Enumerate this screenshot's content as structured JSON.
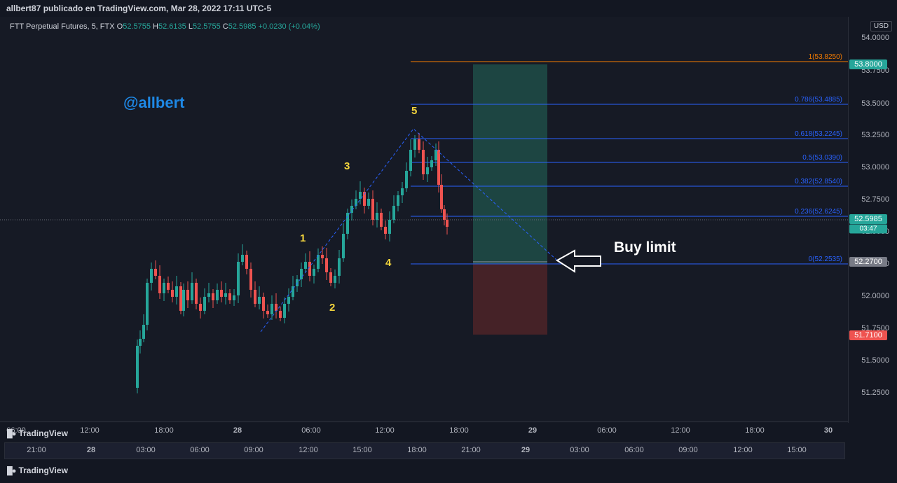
{
  "header": {
    "title": "allbert87 publicado en TradingView.com, Mar 28, 2022 17:11 UTC-5"
  },
  "ohlc": {
    "symbol": "FTT Perpetual Futures, 5, FTX",
    "o_label": "O",
    "o": "52.5755",
    "h_label": "H",
    "h": "52.6135",
    "l_label": "L",
    "l": "52.5755",
    "c_label": "C",
    "c": "52.5985",
    "change": "+0.0230 (+0.04%)"
  },
  "price_axis": {
    "currency": "USD",
    "ticks": [
      "54.0000",
      "53.7500",
      "53.5000",
      "53.2500",
      "53.0000",
      "52.7500",
      "52.5000",
      "52.2500",
      "52.0000",
      "51.7500",
      "51.5000",
      "51.2500"
    ],
    "tags": {
      "target": "53.8000",
      "last": "52.5985",
      "countdown": "03:47",
      "entry": "52.2700",
      "stop": "51.7100"
    }
  },
  "fib_levels": [
    "1(53.8250)",
    "0.786(53.4885)",
    "0.618(53.2245)",
    "0.5(53.0390)",
    "0.382(52.8540)",
    "0.236(52.6245)",
    "0(52.2535)"
  ],
  "annotations": {
    "brand": "@allbert",
    "buy": "Buy limit",
    "waves": [
      "1",
      "2",
      "3",
      "4",
      "5"
    ]
  },
  "time_axis": [
    "06:00",
    "12:00",
    "18:00",
    "28",
    "06:00",
    "12:00",
    "18:00",
    "29",
    "06:00",
    "12:00",
    "18:00",
    "30"
  ],
  "navigator_axis": [
    "21:00",
    "28",
    "03:00",
    "06:00",
    "09:00",
    "12:00",
    "15:00",
    "18:00",
    "21:00",
    "29",
    "03:00",
    "06:00",
    "09:00",
    "12:00",
    "15:00"
  ],
  "footer": {
    "brand1": "TradingView",
    "brand2": "TradingView"
  },
  "colors": {
    "bull": "#26a69a",
    "bear": "#ef5350",
    "fib": "#2962ff",
    "fib_top": "#f57c00",
    "target_zone": "#1e4d48",
    "stop_zone": "#4a2428"
  }
}
